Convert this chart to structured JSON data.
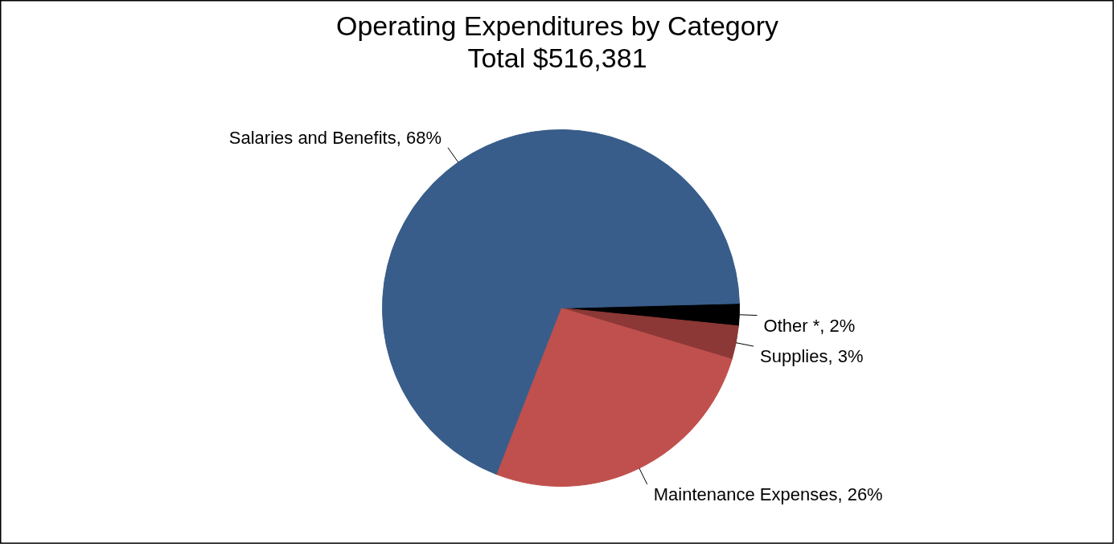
{
  "chart_data": {
    "type": "pie",
    "title": "Operating Expenditures by Category",
    "subtitle": "Total $516,381",
    "categories": [
      "Other *",
      "Supplies",
      "Maintenance Expenses",
      "Salaries and Benefits"
    ],
    "values": [
      2,
      3,
      26,
      68
    ],
    "value_labels": [
      "2%",
      "3%",
      "26%",
      "68%"
    ],
    "colors": [
      "#000000",
      "#8c3836",
      "#c0504d",
      "#385d8a"
    ]
  }
}
